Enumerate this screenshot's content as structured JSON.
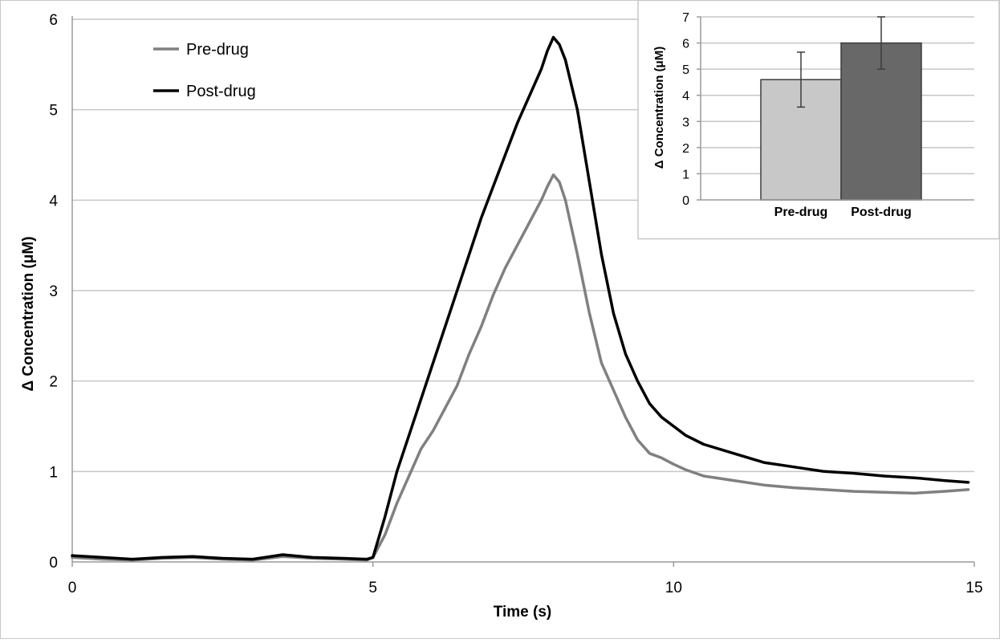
{
  "chart_data": [
    {
      "type": "line",
      "title": "",
      "xlabel": "Time (s)",
      "ylabel": "Δ Concentration (μM)",
      "xlim": [
        0,
        15
      ],
      "ylim": [
        0,
        6
      ],
      "xticks": [
        "0",
        "5",
        "10",
        "15"
      ],
      "yticks": [
        "0",
        "1",
        "2",
        "3",
        "4",
        "5",
        "6"
      ],
      "grid": "horizontal",
      "legend_position": "top-left",
      "series": [
        {
          "name": "Pre-drug",
          "color": "#808080",
          "points": [
            [
              0,
              0.05
            ],
            [
              0.5,
              0.03
            ],
            [
              1,
              0.02
            ],
            [
              1.5,
              0.04
            ],
            [
              2,
              0.05
            ],
            [
              2.5,
              0.03
            ],
            [
              3,
              0.02
            ],
            [
              3.5,
              0.06
            ],
            [
              4,
              0.04
            ],
            [
              4.5,
              0.03
            ],
            [
              4.9,
              0.02
            ],
            [
              5,
              0.05
            ],
            [
              5.2,
              0.3
            ],
            [
              5.4,
              0.65
            ],
            [
              5.6,
              0.95
            ],
            [
              5.8,
              1.25
            ],
            [
              6,
              1.45
            ],
            [
              6.2,
              1.7
            ],
            [
              6.4,
              1.95
            ],
            [
              6.6,
              2.3
            ],
            [
              6.8,
              2.6
            ],
            [
              7,
              2.95
            ],
            [
              7.2,
              3.25
            ],
            [
              7.4,
              3.5
            ],
            [
              7.6,
              3.75
            ],
            [
              7.8,
              4.0
            ],
            [
              7.9,
              4.15
            ],
            [
              8,
              4.28
            ],
            [
              8.1,
              4.2
            ],
            [
              8.2,
              4.0
            ],
            [
              8.4,
              3.4
            ],
            [
              8.6,
              2.75
            ],
            [
              8.8,
              2.2
            ],
            [
              9,
              1.9
            ],
            [
              9.2,
              1.6
            ],
            [
              9.4,
              1.35
            ],
            [
              9.6,
              1.2
            ],
            [
              9.8,
              1.15
            ],
            [
              10,
              1.08
            ],
            [
              10.2,
              1.02
            ],
            [
              10.5,
              0.95
            ],
            [
              11,
              0.9
            ],
            [
              11.5,
              0.85
            ],
            [
              12,
              0.82
            ],
            [
              12.5,
              0.8
            ],
            [
              13,
              0.78
            ],
            [
              13.5,
              0.77
            ],
            [
              14,
              0.76
            ],
            [
              14.5,
              0.78
            ],
            [
              14.9,
              0.8
            ]
          ]
        },
        {
          "name": "Post-drug",
          "color": "#000000",
          "points": [
            [
              0,
              0.07
            ],
            [
              0.5,
              0.05
            ],
            [
              1,
              0.03
            ],
            [
              1.5,
              0.05
            ],
            [
              2,
              0.06
            ],
            [
              2.5,
              0.04
            ],
            [
              3,
              0.03
            ],
            [
              3.5,
              0.08
            ],
            [
              4,
              0.05
            ],
            [
              4.5,
              0.04
            ],
            [
              4.9,
              0.03
            ],
            [
              5,
              0.05
            ],
            [
              5.2,
              0.5
            ],
            [
              5.4,
              1.0
            ],
            [
              5.6,
              1.4
            ],
            [
              5.8,
              1.8
            ],
            [
              6,
              2.2
            ],
            [
              6.2,
              2.6
            ],
            [
              6.4,
              3.0
            ],
            [
              6.6,
              3.4
            ],
            [
              6.8,
              3.8
            ],
            [
              7,
              4.15
            ],
            [
              7.2,
              4.5
            ],
            [
              7.4,
              4.85
            ],
            [
              7.6,
              5.15
            ],
            [
              7.8,
              5.45
            ],
            [
              7.9,
              5.65
            ],
            [
              8,
              5.8
            ],
            [
              8.1,
              5.72
            ],
            [
              8.2,
              5.55
            ],
            [
              8.4,
              5.0
            ],
            [
              8.6,
              4.2
            ],
            [
              8.8,
              3.4
            ],
            [
              9,
              2.75
            ],
            [
              9.2,
              2.3
            ],
            [
              9.4,
              2.0
            ],
            [
              9.6,
              1.75
            ],
            [
              9.8,
              1.6
            ],
            [
              10,
              1.5
            ],
            [
              10.2,
              1.4
            ],
            [
              10.5,
              1.3
            ],
            [
              11,
              1.2
            ],
            [
              11.5,
              1.1
            ],
            [
              12,
              1.05
            ],
            [
              12.5,
              1.0
            ],
            [
              13,
              0.98
            ],
            [
              13.5,
              0.95
            ],
            [
              14,
              0.93
            ],
            [
              14.5,
              0.9
            ],
            [
              14.9,
              0.88
            ]
          ]
        }
      ]
    },
    {
      "type": "bar",
      "title": "",
      "xlabel": "",
      "ylabel": "Δ Concentration (μM)",
      "categories": [
        "Pre-drug",
        "Post-drug"
      ],
      "values": [
        4.6,
        6.0
      ],
      "errors": [
        1.05,
        1.0
      ],
      "colors": [
        "#c8c8c8",
        "#686868"
      ],
      "ylim": [
        0,
        7
      ],
      "yticks": [
        "0",
        "1",
        "2",
        "3",
        "4",
        "5",
        "6",
        "7"
      ],
      "grid": "horizontal"
    }
  ]
}
